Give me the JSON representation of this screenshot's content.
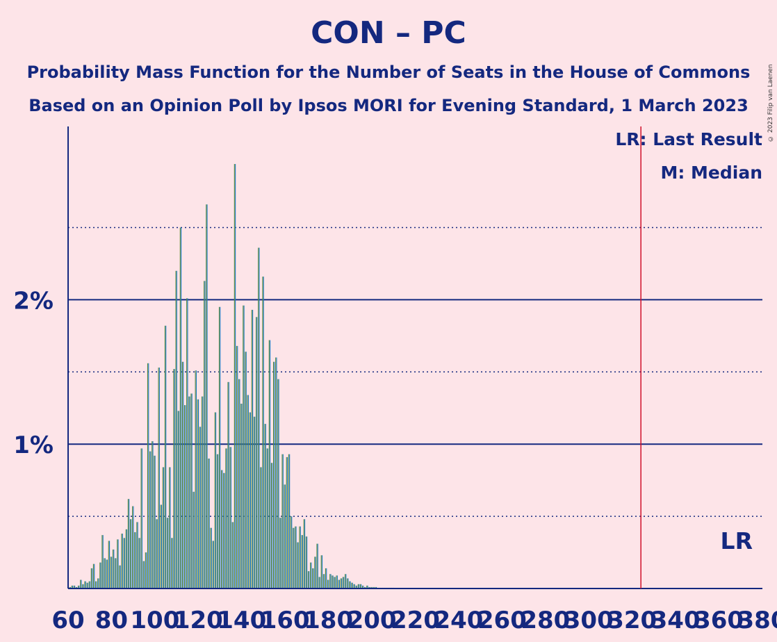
{
  "header": {
    "title": "CON – PC",
    "subtitle1": "Probability Mass Function for the Number of Seats in the House of Commons",
    "subtitle2": "Based on an Opinion Poll by Ipsos MORI for Evening Standard, 1 March 2023",
    "credit": "© 2023 Filip van Laenen"
  },
  "legend": {
    "last_result": "LR: Last Result",
    "median": "M: Median",
    "lr_marker": "LR"
  },
  "chart_data": {
    "type": "bar",
    "xlabel": "",
    "ylabel": "",
    "x_ticks": [
      60,
      80,
      100,
      120,
      140,
      160,
      180,
      200,
      220,
      240,
      260,
      280,
      300,
      320,
      340,
      360,
      380
    ],
    "y_tick_labels": [
      "1%",
      "2%"
    ],
    "y_ticks": [
      1,
      2
    ],
    "y_minor_gridlines": [
      0.5,
      1.5,
      2.5
    ],
    "xlim": [
      60,
      380
    ],
    "ylim": [
      0,
      3.2
    ],
    "grid": true,
    "last_result": 324,
    "colors": {
      "green": "#5a8a3a",
      "blue": "#1a7ac0",
      "axis": "#14287f",
      "lr_line": "#d0102a",
      "background": "#fde4e8"
    },
    "series": [
      {
        "x": [
          61,
          62,
          63,
          64,
          65,
          66,
          67,
          68,
          69,
          70,
          71,
          72,
          73,
          74,
          75,
          76,
          77,
          78,
          79,
          80,
          81,
          82,
          83,
          84,
          85,
          86,
          87,
          88,
          89,
          90,
          91,
          92,
          93,
          94,
          95,
          96,
          97,
          98,
          99,
          100,
          101,
          102,
          103,
          104,
          105,
          106,
          107,
          108,
          109,
          110,
          111,
          112,
          113,
          114,
          115,
          116,
          117,
          118,
          119,
          120,
          121,
          122,
          123,
          124,
          125,
          126,
          127,
          128,
          129,
          130,
          131,
          132,
          133,
          134,
          135,
          136,
          137,
          138,
          139,
          140,
          141,
          142,
          143,
          144,
          145,
          146,
          147,
          148,
          149,
          150,
          151,
          152,
          153,
          154,
          155,
          156,
          157,
          158,
          159,
          160,
          161,
          162,
          163,
          164,
          165,
          166,
          167,
          168,
          169,
          170,
          171,
          172,
          173,
          174,
          175,
          176,
          177,
          178,
          179,
          180,
          181,
          182,
          183,
          184,
          185,
          186,
          187,
          188,
          189,
          190,
          191,
          192,
          193,
          194,
          195,
          196,
          197,
          198,
          199,
          200,
          201,
          202,
          203,
          204,
          205,
          206,
          207,
          208,
          209,
          210
        ],
        "values": [
          0.01,
          0.02,
          0.02,
          0.01,
          0.02,
          0.06,
          0.03,
          0.05,
          0.04,
          0.05,
          0.14,
          0.17,
          0.05,
          0.07,
          0.18,
          0.37,
          0.21,
          0.2,
          0.33,
          0.22,
          0.27,
          0.21,
          0.34,
          0.16,
          0.38,
          0.35,
          0.41,
          0.62,
          0.48,
          0.57,
          0.39,
          0.46,
          0.35,
          0.97,
          0.19,
          0.25,
          1.56,
          0.95,
          1.02,
          0.92,
          0.48,
          1.53,
          0.58,
          0.84,
          1.82,
          0.49,
          0.84,
          0.35,
          1.52,
          2.2,
          1.23,
          2.5,
          1.57,
          1.27,
          2.01,
          1.33,
          1.35,
          0.67,
          1.51,
          1.31,
          1.12,
          1.33,
          2.13,
          2.66,
          0.9,
          0.42,
          0.33,
          1.22,
          0.93,
          1.95,
          0.82,
          0.8,
          0.97,
          1.43,
          0.98,
          0.46,
          2.94,
          1.68,
          1.45,
          1.28,
          1.96,
          1.64,
          1.34,
          1.22,
          1.93,
          1.19,
          1.88,
          2.36,
          0.84,
          2.16,
          1.14,
          0.97,
          1.72,
          0.87,
          1.57,
          1.6,
          1.45,
          0.49,
          0.93,
          0.72,
          0.91,
          0.93,
          0.5,
          0.42,
          0.43,
          0.32,
          0.43,
          0.37,
          0.48,
          0.36,
          0.12,
          0.18,
          0.14,
          0.22,
          0.31,
          0.08,
          0.23,
          0.1,
          0.14,
          0.06,
          0.1,
          0.09,
          0.08,
          0.09,
          0.06,
          0.07,
          0.08,
          0.1,
          0.07,
          0.05,
          0.04,
          0.03,
          0.02,
          0.03,
          0.03,
          0.02,
          0.01,
          0.02,
          0.01,
          0.01,
          0.01,
          0.01,
          0.005,
          0.005,
          0.005,
          0.005,
          0.005,
          0.005,
          0.005,
          0.005
        ]
      }
    ]
  }
}
